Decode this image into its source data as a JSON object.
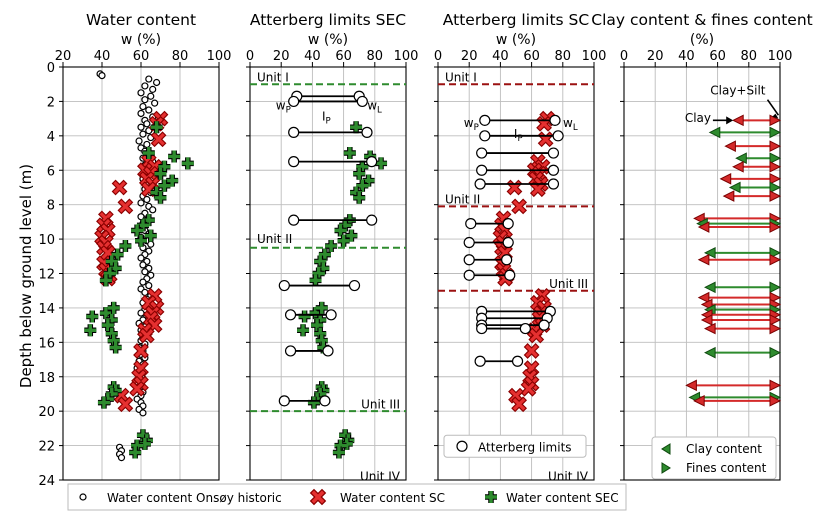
{
  "figure": {
    "y_axis_label": "Depth below ground level (m)",
    "depth_ticks": [
      "0",
      "2",
      "4",
      "6",
      "8",
      "10",
      "12",
      "14",
      "16",
      "18",
      "20",
      "22",
      "24"
    ],
    "legend": {
      "onsoy": "Water content Onsøy historic",
      "sc": "Water content SC",
      "sec": "Water content SEC"
    }
  },
  "chart_data": [
    {
      "type": "scatter",
      "title": "Water content",
      "xlabel": "w (%)",
      "xlim": [
        20,
        100
      ],
      "x_ticks": [
        "20",
        "40",
        "60",
        "80",
        "100"
      ],
      "ylim": [
        24,
        0
      ],
      "series": [
        {
          "name": "Water content Onsøy historic",
          "points": [
            [
              39,
              0.4
            ],
            [
              40,
              0.5
            ],
            [
              64,
              0.7
            ],
            [
              68,
              0.9
            ],
            [
              62,
              1.1
            ],
            [
              66,
              1.3
            ],
            [
              60,
              1.5
            ],
            [
              65,
              1.7
            ],
            [
              62,
              1.9
            ],
            [
              67,
              2.1
            ],
            [
              61,
              2.3
            ],
            [
              64,
              2.5
            ],
            [
              60,
              2.7
            ],
            [
              66,
              2.9
            ],
            [
              62,
              3.1
            ],
            [
              63,
              3.3
            ],
            [
              60,
              3.5
            ],
            [
              64,
              3.7
            ],
            [
              61,
              3.9
            ],
            [
              65,
              4.1
            ],
            [
              59,
              4.3
            ],
            [
              63,
              4.5
            ],
            [
              60,
              4.7
            ],
            [
              62,
              4.9
            ],
            [
              64,
              5.1
            ],
            [
              61,
              5.3
            ],
            [
              66,
              5.5
            ],
            [
              62,
              5.7
            ],
            [
              65,
              5.9
            ],
            [
              63,
              6.1
            ],
            [
              67,
              6.3
            ],
            [
              61,
              6.5
            ],
            [
              64,
              6.7
            ],
            [
              66,
              6.9
            ],
            [
              62,
              7.1
            ],
            [
              65,
              7.3
            ],
            [
              61,
              7.5
            ],
            [
              63,
              7.7
            ],
            [
              60,
              7.9
            ],
            [
              64,
              8.1
            ],
            [
              66,
              8.3
            ],
            [
              62,
              8.5
            ],
            [
              60,
              8.7
            ],
            [
              63,
              8.9
            ],
            [
              61,
              9.1
            ],
            [
              59,
              9.3
            ],
            [
              62,
              9.5
            ],
            [
              64,
              9.7
            ],
            [
              60,
              9.9
            ],
            [
              63,
              10.1
            ],
            [
              65,
              10.3
            ],
            [
              61,
              10.5
            ],
            [
              64,
              10.7
            ],
            [
              62,
              10.9
            ],
            [
              60,
              11.1
            ],
            [
              63,
              11.3
            ],
            [
              61,
              11.5
            ],
            [
              64,
              11.7
            ],
            [
              62,
              11.9
            ],
            [
              65,
              12.1
            ],
            [
              63,
              12.3
            ],
            [
              61,
              12.5
            ],
            [
              64,
              12.7
            ],
            [
              60,
              12.9
            ],
            [
              62,
              13.1
            ],
            [
              65,
              13.3
            ],
            [
              63,
              13.5
            ],
            [
              61,
              13.7
            ],
            [
              64,
              13.9
            ],
            [
              62,
              14.1
            ],
            [
              60,
              14.3
            ],
            [
              63,
              14.5
            ],
            [
              61,
              14.7
            ],
            [
              59,
              14.9
            ],
            [
              62,
              15.1
            ],
            [
              60,
              15.3
            ],
            [
              63,
              15.5
            ],
            [
              61,
              15.7
            ],
            [
              60,
              15.9
            ],
            [
              62,
              16.1
            ],
            [
              59,
              16.3
            ],
            [
              61,
              16.5
            ],
            [
              60,
              16.7
            ],
            [
              62,
              16.9
            ],
            [
              59,
              17.1
            ],
            [
              61,
              17.3
            ],
            [
              58,
              17.5
            ],
            [
              60,
              17.7
            ],
            [
              59,
              17.9
            ],
            [
              61,
              18.1
            ],
            [
              58,
              18.3
            ],
            [
              60,
              18.5
            ],
            [
              59,
              18.7
            ],
            [
              61,
              18.9
            ],
            [
              60,
              19.1
            ],
            [
              58,
              19.3
            ],
            [
              60,
              19.5
            ],
            [
              61,
              19.7
            ],
            [
              59,
              19.9
            ],
            [
              61,
              20.1
            ],
            [
              49,
              22.1
            ],
            [
              50,
              22.3
            ],
            [
              49,
              22.5
            ],
            [
              50,
              22.7
            ]
          ]
        },
        {
          "name": "Water content SC",
          "points": [
            [
              70,
              3.0
            ],
            [
              68,
              3.3
            ],
            [
              69,
              4.2
            ],
            [
              64,
              5.5
            ],
            [
              67,
              5.8
            ],
            [
              62,
              6.0
            ],
            [
              65,
              6.2
            ],
            [
              63,
              6.5
            ],
            [
              66,
              6.8
            ],
            [
              64,
              7.1
            ],
            [
              49,
              7.0
            ],
            [
              52,
              8.1
            ],
            [
              42,
              8.8
            ],
            [
              41,
              9.2
            ],
            [
              43,
              9.5
            ],
            [
              40,
              9.9
            ],
            [
              42,
              10.2
            ],
            [
              41,
              10.5
            ],
            [
              43,
              10.8
            ],
            [
              41,
              11.4
            ],
            [
              42,
              11.8
            ],
            [
              44,
              12.1
            ],
            [
              43,
              12.3
            ],
            [
              67,
              13.3
            ],
            [
              64,
              13.7
            ],
            [
              68,
              14.0
            ],
            [
              66,
              14.3
            ],
            [
              65,
              14.6
            ],
            [
              67,
              15.0
            ],
            [
              62,
              15.3
            ],
            [
              63,
              15.6
            ],
            [
              60,
              16.5
            ],
            [
              60,
              17.5
            ],
            [
              59,
              18.0
            ],
            [
              60,
              18.4
            ],
            [
              58,
              18.7
            ],
            [
              50,
              19.1
            ],
            [
              52,
              19.6
            ]
          ]
        },
        {
          "name": "Water content SEC",
          "points": [
            [
              68,
              3.5
            ],
            [
              64,
              5.0
            ],
            [
              77,
              5.2
            ],
            [
              84,
              5.6
            ],
            [
              72,
              5.8
            ],
            [
              70,
              6.2
            ],
            [
              76,
              6.6
            ],
            [
              72,
              6.9
            ],
            [
              68,
              7.3
            ],
            [
              70,
              7.6
            ],
            [
              64,
              8.9
            ],
            [
              61,
              9.2
            ],
            [
              58,
              9.5
            ],
            [
              65,
              9.8
            ],
            [
              60,
              10.1
            ],
            [
              52,
              10.4
            ],
            [
              48,
              10.9
            ],
            [
              45,
              11.3
            ],
            [
              47,
              11.7
            ],
            [
              44,
              12.0
            ],
            [
              42,
              12.4
            ],
            [
              35,
              14.5
            ],
            [
              42,
              14.3
            ],
            [
              45,
              14.7
            ],
            [
              46,
              14.0
            ],
            [
              43,
              15.0
            ],
            [
              45,
              15.5
            ],
            [
              46,
              15.9
            ],
            [
              47,
              16.3
            ],
            [
              34,
              15.3
            ],
            [
              46,
              18.6
            ],
            [
              47,
              18.8
            ],
            [
              45,
              19.0
            ],
            [
              43,
              19.3
            ],
            [
              41,
              19.5
            ],
            [
              61,
              21.4
            ],
            [
              63,
              21.7
            ],
            [
              62,
              21.9
            ],
            [
              58,
              22.0
            ],
            [
              57,
              22.4
            ]
          ]
        }
      ]
    },
    {
      "type": "range",
      "title": "Atterberg limits SEC",
      "xlabel": "w (%)",
      "xlim": [
        0,
        100
      ],
      "x_ticks": [
        "0",
        "20",
        "40",
        "60",
        "80",
        "100"
      ],
      "ylim": [
        24,
        0
      ],
      "ranges": [
        [
          30,
          70,
          1.7
        ],
        [
          28,
          72,
          2.0
        ],
        [
          28,
          75,
          3.8
        ],
        [
          28,
          78,
          5.5
        ],
        [
          28,
          78,
          8.9
        ],
        [
          22,
          67,
          12.7
        ],
        [
          26,
          52,
          14.4
        ],
        [
          26,
          50,
          16.5
        ],
        [
          22,
          48,
          19.4
        ]
      ],
      "unit_boundaries": [
        1.0,
        10.5,
        20.0
      ],
      "unit_labels": [
        {
          "text": "Unit I",
          "depth": 0.6,
          "side": "left"
        },
        {
          "text": "Unit II",
          "depth": 10.0,
          "side": "left"
        },
        {
          "text": "Unit III",
          "depth": 19.6,
          "side": "right"
        },
        {
          "text": "Unit IV",
          "depth": 23.8,
          "side": "right"
        }
      ],
      "annotations": {
        "wp": "wP",
        "wl": "wL",
        "ip": "IP"
      },
      "overlay_series": "Water content SEC"
    },
    {
      "type": "range",
      "title": "Atterberg limits SC",
      "xlabel": "w (%)",
      "xlim": [
        0,
        100
      ],
      "x_ticks": [
        "0",
        "20",
        "40",
        "60",
        "80",
        "100"
      ],
      "ylim": [
        24,
        0
      ],
      "ranges": [
        [
          30,
          75,
          3.1
        ],
        [
          30,
          77,
          4.0
        ],
        [
          28,
          74,
          5.0
        ],
        [
          28,
          74,
          6.0
        ],
        [
          27,
          74,
          6.8
        ],
        [
          21,
          45,
          9.1
        ],
        [
          20,
          45,
          10.2
        ],
        [
          20,
          44,
          11.2
        ],
        [
          20,
          46,
          12.1
        ],
        [
          28,
          72,
          14.2
        ],
        [
          28,
          70,
          14.6
        ],
        [
          28,
          68,
          15.0
        ],
        [
          28,
          56,
          15.2
        ],
        [
          27,
          51,
          17.1
        ]
      ],
      "unit_boundaries": [
        1.0,
        8.1,
        13.0
      ],
      "unit_labels": [
        {
          "text": "Unit I",
          "depth": 0.6,
          "side": "left"
        },
        {
          "text": "Unit II",
          "depth": 7.7,
          "side": "left"
        },
        {
          "text": "Unit III",
          "depth": 12.6,
          "side": "right"
        },
        {
          "text": "Unit IV",
          "depth": 23.8,
          "side": "right"
        }
      ],
      "annotations": {
        "wp": "wP",
        "wl": "wL",
        "ip": "IP"
      },
      "legend": "Atterberg limits",
      "overlay_series": "Water content SC"
    },
    {
      "type": "arrows",
      "title": "Clay content & fines content",
      "xlabel": "(%)",
      "xlim": [
        0,
        100
      ],
      "x_ticks": [
        "0",
        "20",
        "40",
        "60",
        "80",
        "100"
      ],
      "ylim": [
        24,
        0
      ],
      "annotations": {
        "clay": "Clay",
        "clay_silt": "Clay+Silt"
      },
      "legend": {
        "clay": "Clay content",
        "fines": "Fines content"
      },
      "arrows": [
        {
          "clay": 70,
          "fines": 100,
          "depth": 3.1,
          "color": "red"
        },
        {
          "clay": 55,
          "fines": 100,
          "depth": 3.8,
          "color": "green"
        },
        {
          "clay": 65,
          "fines": 100,
          "depth": 4.6,
          "color": "red"
        },
        {
          "clay": 72,
          "fines": 100,
          "depth": 5.3,
          "color": "green"
        },
        {
          "clay": 70,
          "fines": 100,
          "depth": 5.8,
          "color": "red"
        },
        {
          "clay": 62,
          "fines": 100,
          "depth": 6.5,
          "color": "red"
        },
        {
          "clay": 68,
          "fines": 100,
          "depth": 7.0,
          "color": "green"
        },
        {
          "clay": 64,
          "fines": 100,
          "depth": 7.5,
          "color": "red"
        },
        {
          "clay": 45,
          "fines": 100,
          "depth": 8.8,
          "color": "red"
        },
        {
          "clay": 47,
          "fines": 100,
          "depth": 9.1,
          "color": "green"
        },
        {
          "clay": 48,
          "fines": 100,
          "depth": 9.3,
          "color": "red"
        },
        {
          "clay": 52,
          "fines": 100,
          "depth": 10.8,
          "color": "green"
        },
        {
          "clay": 48,
          "fines": 100,
          "depth": 11.2,
          "color": "red"
        },
        {
          "clay": 52,
          "fines": 100,
          "depth": 12.8,
          "color": "green"
        },
        {
          "clay": 48,
          "fines": 100,
          "depth": 13.4,
          "color": "red"
        },
        {
          "clay": 50,
          "fines": 100,
          "depth": 13.8,
          "color": "red"
        },
        {
          "clay": 52,
          "fines": 100,
          "depth": 14.1,
          "color": "green"
        },
        {
          "clay": 50,
          "fines": 100,
          "depth": 14.4,
          "color": "red"
        },
        {
          "clay": 50,
          "fines": 100,
          "depth": 14.7,
          "color": "red"
        },
        {
          "clay": 52,
          "fines": 100,
          "depth": 15.2,
          "color": "red"
        },
        {
          "clay": 52,
          "fines": 100,
          "depth": 16.6,
          "color": "green"
        },
        {
          "clay": 40,
          "fines": 100,
          "depth": 18.5,
          "color": "red"
        },
        {
          "clay": 42,
          "fines": 100,
          "depth": 19.2,
          "color": "green"
        },
        {
          "clay": 45,
          "fines": 100,
          "depth": 19.4,
          "color": "red"
        }
      ]
    }
  ]
}
